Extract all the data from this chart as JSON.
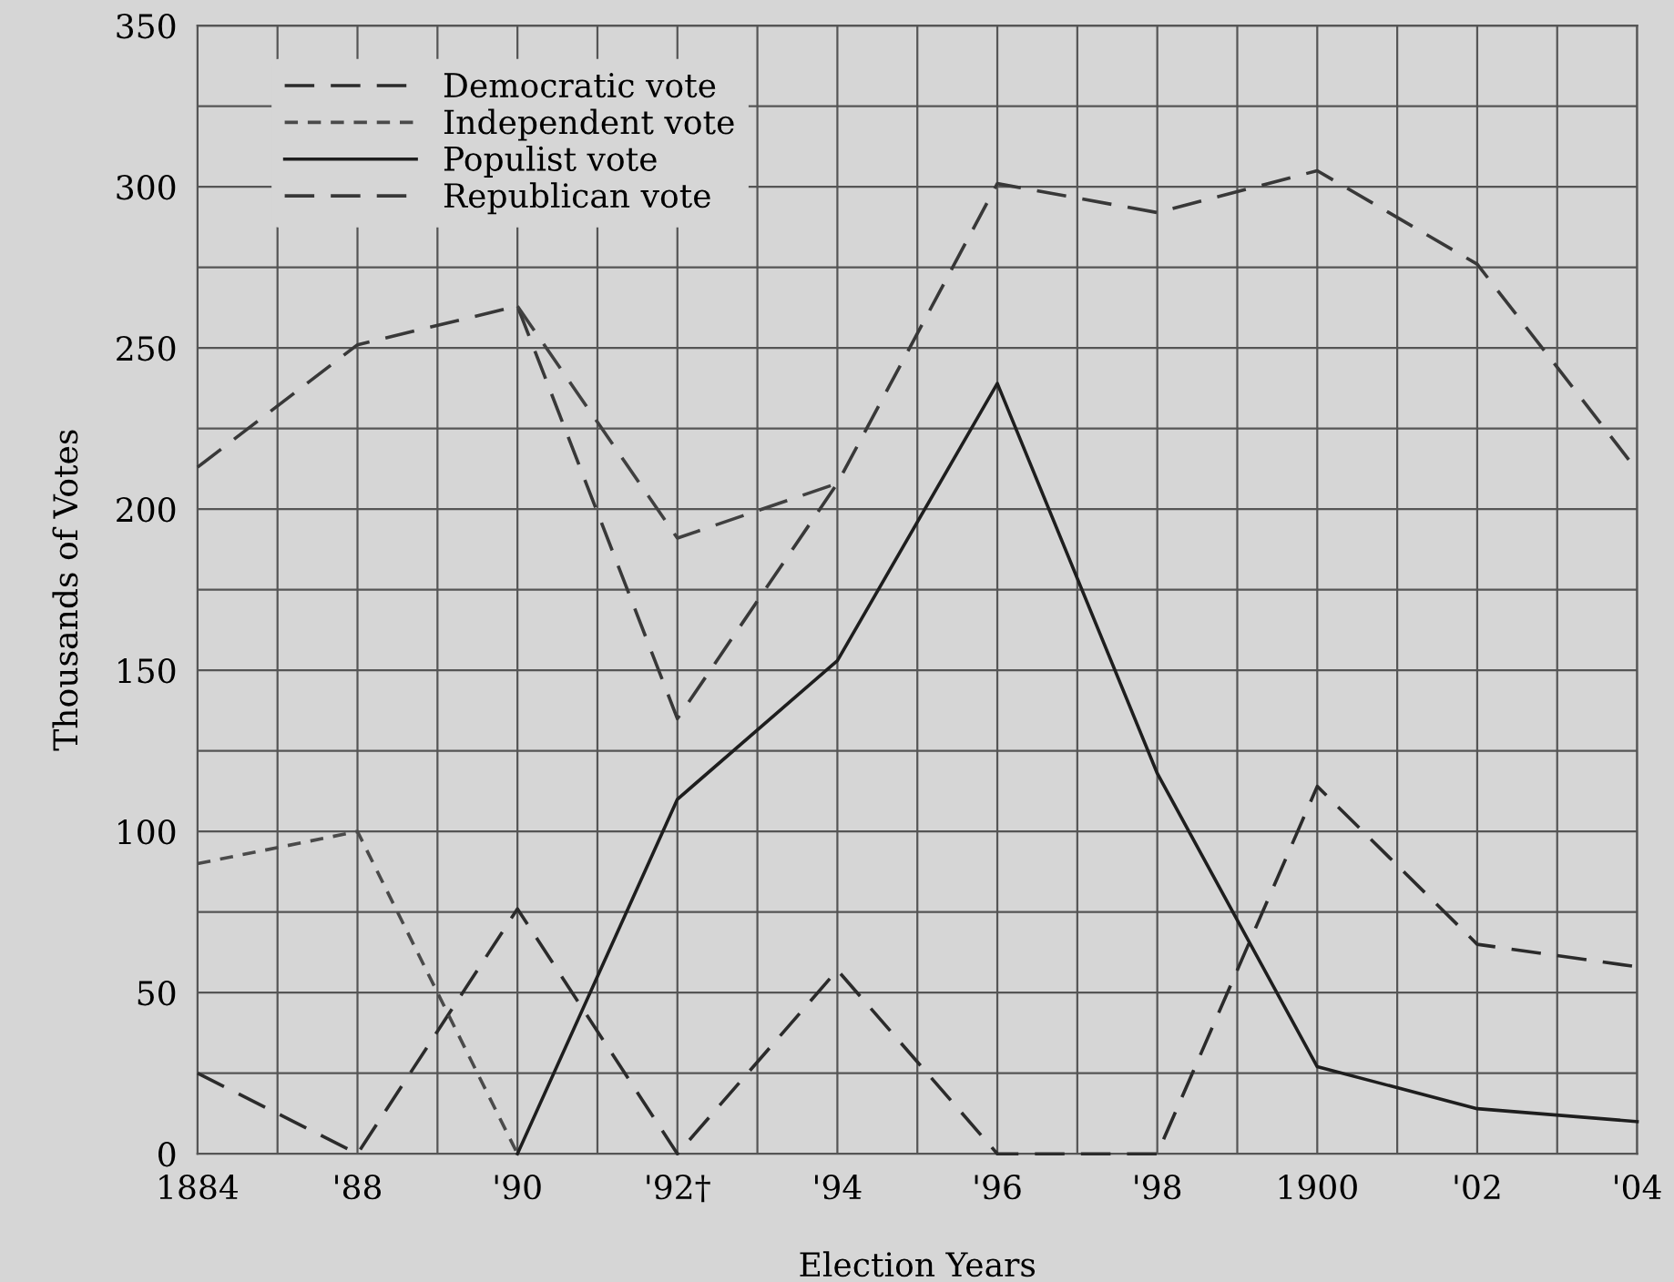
{
  "chart_data": {
    "type": "line",
    "xlabel": "Election Years",
    "ylabel": "Thousands of Votes",
    "categories": [
      "1884",
      "'88",
      "'90",
      "'92†",
      "'94",
      "'96",
      "'98",
      "1900",
      "'02",
      "'04"
    ],
    "series": [
      {
        "name": "Democratic vote",
        "color": "#2b2b2b",
        "line_style": "dashed",
        "values": [
          25,
          0,
          76,
          0,
          57,
          0,
          0,
          114,
          65,
          58
        ]
      },
      {
        "name": "Independent vote",
        "color": "#4a4a4a",
        "line_style": "dotted",
        "values": [
          90,
          100,
          0,
          null,
          null,
          null,
          null,
          null,
          null,
          null
        ]
      },
      {
        "name": "Populist vote",
        "color": "#1e1e1e",
        "line_style": "solid",
        "values": [
          null,
          null,
          0,
          110,
          153,
          239,
          118,
          27,
          14,
          10
        ]
      },
      {
        "name": "Republican vote",
        "color": "#383838",
        "line_style": "dashed",
        "values": [
          213,
          251,
          263,
          135,
          208,
          301,
          292,
          305,
          276,
          212
        ]
      },
      {
        "color": "#404040",
        "line_style": "dashed",
        "values": [
          null,
          null,
          263,
          191,
          208,
          null,
          null,
          null,
          null,
          null
        ]
      }
    ],
    "ylim": [
      0,
      350
    ],
    "yticks": [
      0,
      50,
      100,
      150,
      200,
      250,
      300,
      350
    ],
    "grid": true,
    "legend": "top left",
    "marker": "none"
  }
}
